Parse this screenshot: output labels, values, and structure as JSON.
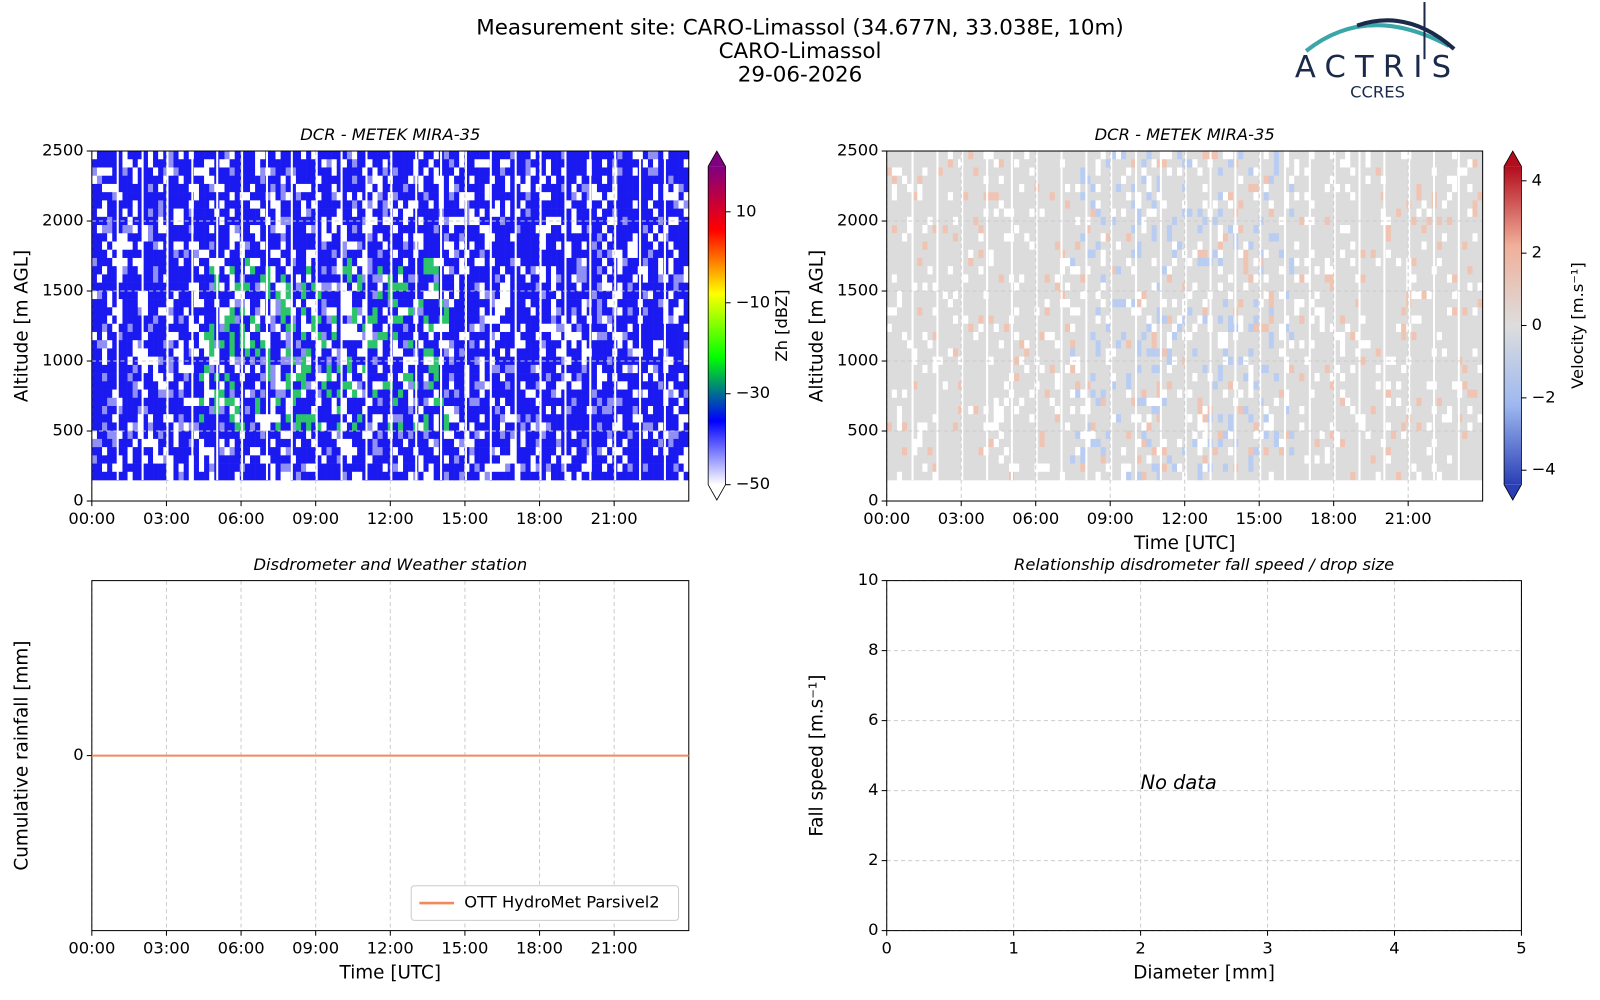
{
  "header": {
    "title_lines": [
      "Measurement site: CARO-Limassol (34.677N, 33.038E, 10m)",
      "CARO-Limassol",
      "29-06-2026"
    ],
    "logo_text": "ACTRIS",
    "logo_subtext": "CCRES"
  },
  "chart_data": [
    {
      "type": "heatmap",
      "title": "DCR - METEK MIRA-35",
      "ylabel": "Altitude [m AGL]",
      "xlim": [
        0,
        24
      ],
      "xticks": [
        {
          "value": 0,
          "label": "00:00"
        },
        {
          "value": 3,
          "label": "03:00"
        },
        {
          "value": 6,
          "label": "06:00"
        },
        {
          "value": 9,
          "label": "09:00"
        },
        {
          "value": 12,
          "label": "12:00"
        },
        {
          "value": 15,
          "label": "15:00"
        },
        {
          "value": 18,
          "label": "18:00"
        },
        {
          "value": 21,
          "label": "21:00"
        }
      ],
      "ylim": [
        0,
        2500
      ],
      "yticks": [
        0,
        500,
        1000,
        1500,
        2000,
        2500
      ],
      "grid": true,
      "colorbar": {
        "label": "Zh [dBZ]",
        "lim": [
          -50,
          20
        ],
        "ticks": [
          {
            "value": -50,
            "label": "−50"
          },
          {
            "value": -30,
            "label": "−30"
          },
          {
            "value": -10,
            "label": "−10"
          },
          10
        ],
        "colors": [
          "#ffffff",
          "#0000ff",
          "#00ff00",
          "#ffff00",
          "#ff0000",
          "#800080"
        ]
      }
    },
    {
      "type": "heatmap",
      "title": "DCR - METEK MIRA-35",
      "xlabel": "Time [UTC]",
      "ylabel": "Altitude [m AGL]",
      "xlim": [
        0,
        24
      ],
      "xticks": [
        {
          "value": 0,
          "label": "00:00"
        },
        {
          "value": 3,
          "label": "03:00"
        },
        {
          "value": 6,
          "label": "06:00"
        },
        {
          "value": 9,
          "label": "09:00"
        },
        {
          "value": 12,
          "label": "12:00"
        },
        {
          "value": 15,
          "label": "15:00"
        },
        {
          "value": 18,
          "label": "18:00"
        },
        {
          "value": 21,
          "label": "21:00"
        }
      ],
      "ylim": [
        0,
        2500
      ],
      "yticks": [
        0,
        500,
        1000,
        1500,
        2000,
        2500
      ],
      "grid": true,
      "colorbar": {
        "label": "Velocity [m.s⁻¹]",
        "lim": [
          -4.4,
          4.4
        ],
        "ticks": [
          {
            "value": -4,
            "label": "−4"
          },
          {
            "value": -2,
            "label": "−2"
          },
          0,
          2,
          4
        ],
        "colors": [
          "#2a3fb5",
          "#9db8f0",
          "#dddddd",
          "#f0b09a",
          "#b30c1c"
        ]
      }
    },
    {
      "type": "line",
      "title": "Disdrometer and Weather station",
      "xlabel": "Time [UTC]",
      "ylabel": "Cumulative rainfall [mm]",
      "x": [
        0,
        24
      ],
      "series": [
        {
          "name": "OTT HydroMet Parsivel2",
          "color": "#f08a5d",
          "values": [
            0,
            0
          ]
        }
      ],
      "xlim": [
        0,
        24
      ],
      "xticks": [
        {
          "value": 0,
          "label": "00:00"
        },
        {
          "value": 3,
          "label": "03:00"
        },
        {
          "value": 6,
          "label": "06:00"
        },
        {
          "value": 9,
          "label": "09:00"
        },
        {
          "value": 12,
          "label": "12:00"
        },
        {
          "value": 15,
          "label": "15:00"
        },
        {
          "value": 18,
          "label": "18:00"
        },
        {
          "value": 21,
          "label": "21:00"
        }
      ],
      "ylim": [
        -0.055,
        0.055
      ],
      "yticks": [
        0
      ],
      "grid": true,
      "legend": "lower right"
    },
    {
      "type": "scatter",
      "title": "Relationship disdrometer fall speed / drop size",
      "xlabel": "Diameter [mm]",
      "ylabel": "Fall speed [m.s⁻¹]",
      "x": [],
      "y": [],
      "annotation": "No data",
      "xlim": [
        0,
        5
      ],
      "xticks": [
        0,
        1,
        2,
        3,
        4,
        5
      ],
      "ylim": [
        0,
        10
      ],
      "yticks": [
        0,
        2,
        4,
        6,
        8,
        10
      ],
      "grid": true
    }
  ]
}
